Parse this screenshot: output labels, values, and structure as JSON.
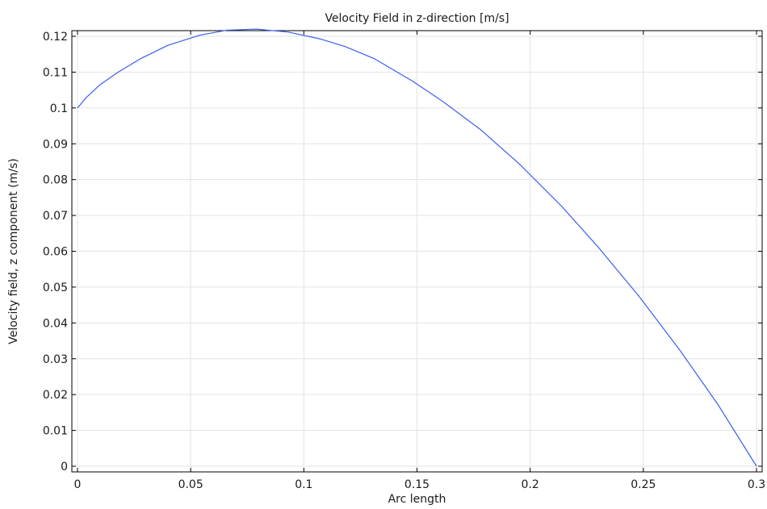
{
  "chart_data": {
    "type": "line",
    "title": "Velocity Field in z-direction [m/s]",
    "xlabel": "Arc length",
    "ylabel": "Velocity field, z component (m/s)",
    "xlim": [
      0,
      0.3
    ],
    "ylim": [
      0,
      0.12
    ],
    "xticks": [
      "0",
      "0.05",
      "0.1",
      "0.15",
      "0.2",
      "0.25",
      "0.3"
    ],
    "yticks": [
      "0",
      "0.01",
      "0.02",
      "0.03",
      "0.04",
      "0.05",
      "0.06",
      "0.07",
      "0.08",
      "0.09",
      "0.1",
      "0.11",
      "0.12"
    ],
    "grid": true,
    "series": [
      {
        "color": "#3a5ff0",
        "x": [
          0,
          0.004,
          0.01,
          0.018,
          0.028,
          0.04,
          0.054,
          0.066,
          0.079,
          0.093,
          0.107,
          0.118,
          0.131,
          0.148,
          0.161,
          0.178,
          0.195,
          0.214,
          0.23,
          0.248,
          0.266,
          0.283,
          0.3
        ],
        "y": [
          0.1,
          0.103,
          0.1065,
          0.11,
          0.1138,
          0.1175,
          0.1203,
          0.1217,
          0.122,
          0.1212,
          0.1193,
          0.1172,
          0.1138,
          0.1075,
          0.102,
          0.094,
          0.0845,
          0.0725,
          0.0612,
          0.0475,
          0.0325,
          0.0172,
          0
        ]
      }
    ]
  }
}
